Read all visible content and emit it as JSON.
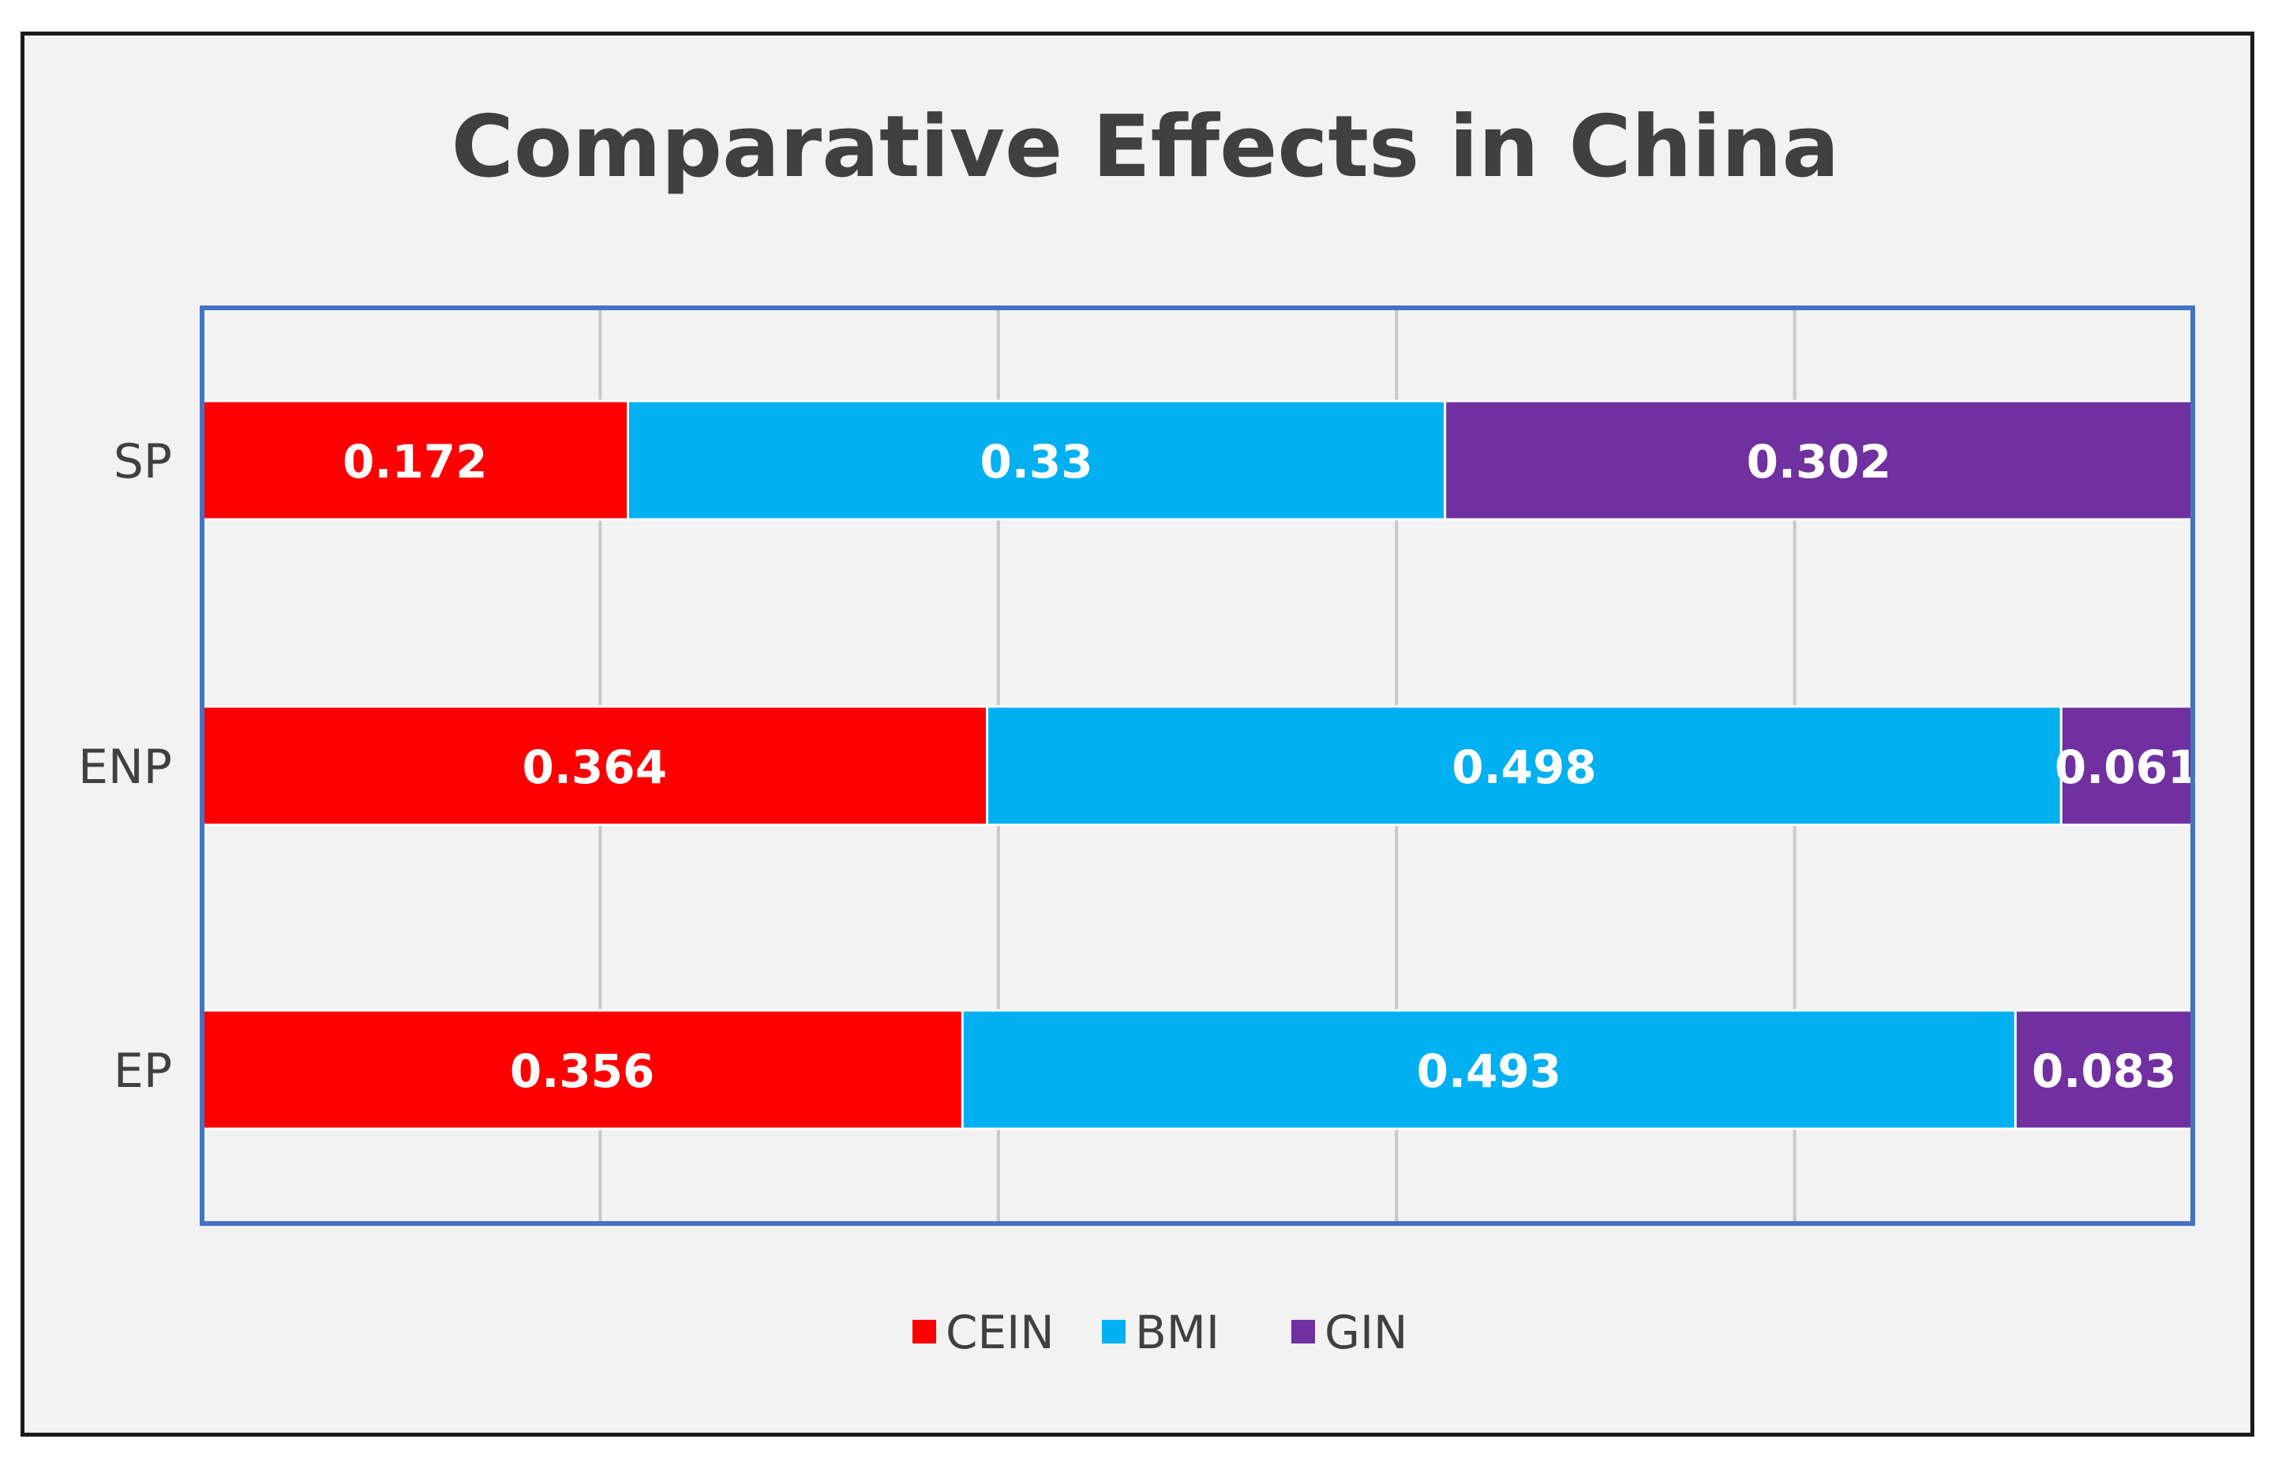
{
  "chart_data": {
    "type": "bar",
    "orientation": "horizontal",
    "stacked": true,
    "normalized": true,
    "title": "Comparative Effects in China",
    "xlabel": "",
    "ylabel": "",
    "categories": [
      "SP",
      "ENP",
      "EP"
    ],
    "series": [
      {
        "name": "CEIN",
        "color": "#ff0000",
        "values": [
          0.172,
          0.364,
          0.356
        ],
        "labels": [
          "0.172",
          "0.364",
          "0.356"
        ]
      },
      {
        "name": "BMI",
        "color": "#00b0f0",
        "values": [
          0.33,
          0.498,
          0.493
        ],
        "labels": [
          "0.33",
          "0.498",
          "0.493"
        ]
      },
      {
        "name": "GIN",
        "color": "#7030a0",
        "values": [
          0.302,
          0.061,
          0.083
        ],
        "labels": [
          "0.302",
          "0.061",
          "0.083"
        ]
      }
    ],
    "xlim": [
      0,
      1
    ],
    "gridlines": [
      0.2,
      0.4,
      0.6,
      0.8
    ],
    "grid": true,
    "legend": "bottom-center",
    "plot_border_color": "#4472c4",
    "grid_color": "#c8c8c8"
  }
}
